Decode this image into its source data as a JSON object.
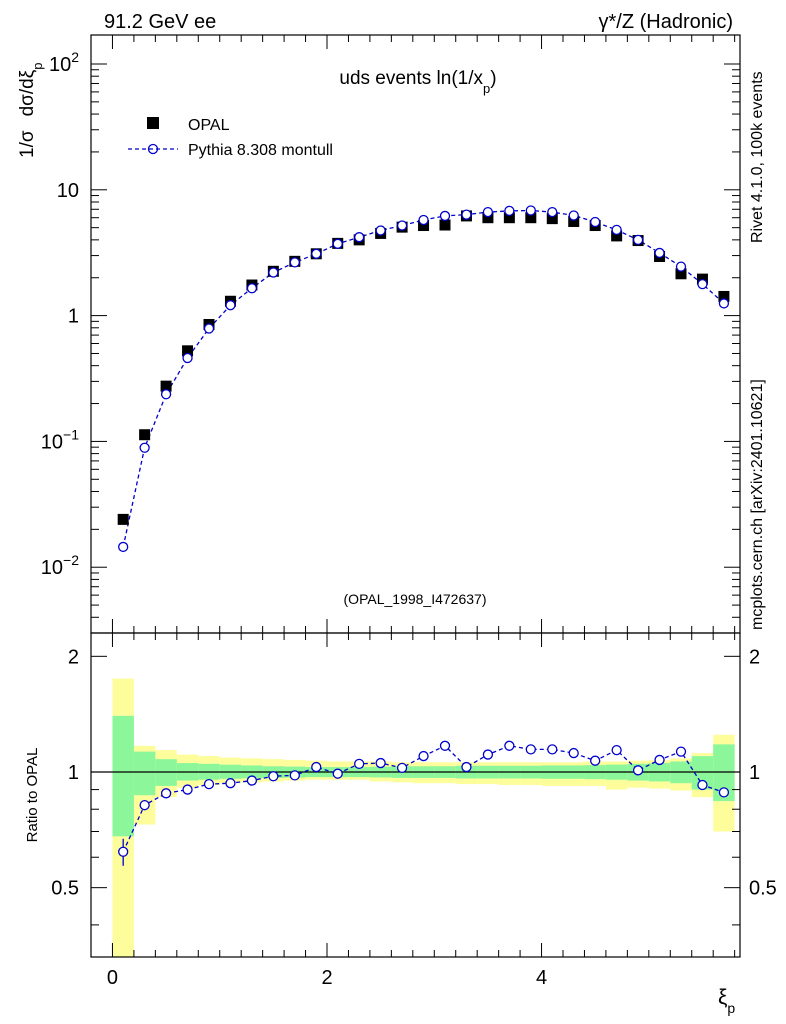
{
  "header": {
    "left": "91.2 GeV ee",
    "right_base": "γ*/Z (Hadronic)"
  },
  "main": {
    "title_base": "uds events ln(1/x",
    "title_sub": "p",
    "title_close": ")",
    "ylabel_part1": "1/σ",
    "ylabel_part2": "dσ/dξ",
    "ylabel_sub": "p",
    "tag": "(OPAL_1998_I472637)",
    "yticks_major": [
      {
        "value": 0.01,
        "base": "10",
        "exp": "−2"
      },
      {
        "value": 0.1,
        "base": "10",
        "exp": "−1"
      },
      {
        "value": 1,
        "base": "1",
        "exp": ""
      },
      {
        "value": 10,
        "base": "10",
        "exp": ""
      },
      {
        "value": 100,
        "base": "10",
        "exp": "2"
      }
    ]
  },
  "ratio": {
    "ylabel": "Ratio to OPAL",
    "ytick_labels": [
      "0.5",
      "1",
      "2"
    ]
  },
  "xaxis": {
    "label_base": "ξ",
    "label_sub": "p",
    "tick_labels": [
      "0",
      "2",
      "4"
    ]
  },
  "legend": [
    {
      "name": "OPAL",
      "marker": "filled-square",
      "color": "#000000"
    },
    {
      "name": "Pythia 8.308 montull",
      "marker": "open-circle-dashed",
      "color": "#0000cc"
    }
  ],
  "side_text": {
    "rivet": "Rivet 4.1.0,  100k events",
    "mcplots": "mcplots.cern.ch [arXiv:2401.10621]"
  },
  "colors": {
    "data": "#000000",
    "mc": "#0000cc",
    "band_inner": "#8cf79a",
    "band_outer": "#fdfd9c",
    "side_text": "#888888"
  },
  "chart_data": {
    "type": "line",
    "title": "uds events ln(1/x_p)",
    "xlabel": "ξ_p",
    "ylabel": "1/σ dσ/dξ_p",
    "xlim": [
      -0.2,
      5.85
    ],
    "ylim_main": [
      0.003,
      170
    ],
    "ylim_ratio": [
      0.33,
      2.3
    ],
    "yscale_main": "log",
    "yscale_ratio": "log",
    "bin_width": 0.2,
    "x": [
      0.1,
      0.3,
      0.5,
      0.7,
      0.9,
      1.1,
      1.3,
      1.5,
      1.7,
      1.9,
      2.1,
      2.3,
      2.5,
      2.7,
      2.9,
      3.1,
      3.3,
      3.5,
      3.7,
      3.9,
      4.1,
      4.3,
      4.5,
      4.7,
      4.9,
      5.1,
      5.3,
      5.5,
      5.7
    ],
    "series": [
      {
        "name": "OPAL",
        "values": [
          0.024,
          0.113,
          0.275,
          0.525,
          0.85,
          1.3,
          1.75,
          2.25,
          2.7,
          3.1,
          3.75,
          4.0,
          4.5,
          5.05,
          5.2,
          5.25,
          6.2,
          6.0,
          6.0,
          6.0,
          5.9,
          5.6,
          5.2,
          4.3,
          3.95,
          2.95,
          2.15,
          1.95,
          1.42
        ]
      },
      {
        "name": "Pythia 8.308 montull",
        "values": [
          0.0145,
          0.089,
          0.237,
          0.46,
          0.79,
          1.21,
          1.65,
          2.2,
          2.65,
          3.1,
          3.72,
          4.2,
          4.75,
          5.2,
          5.75,
          6.2,
          6.35,
          6.65,
          6.8,
          6.85,
          6.65,
          6.25,
          5.55,
          4.8,
          4.0,
          3.15,
          2.45,
          1.78,
          1.25
        ]
      }
    ],
    "ratio": {
      "reference": "OPAL",
      "values": [
        0.62,
        0.82,
        0.88,
        0.9,
        0.93,
        0.935,
        0.95,
        0.975,
        0.98,
        1.03,
        0.99,
        1.05,
        1.055,
        1.025,
        1.1,
        1.17,
        1.03,
        1.11,
        1.17,
        1.145,
        1.145,
        1.12,
        1.07,
        1.14,
        1.01,
        1.075,
        1.13,
        0.925,
        0.885
      ],
      "mc_error": [
        0.05,
        0.025,
        0.015,
        0.01,
        0.008,
        0.007,
        0.006,
        0.005,
        0.005,
        0.005,
        0.005,
        0.005,
        0.005,
        0.005,
        0.005,
        0.005,
        0.005,
        0.005,
        0.005,
        0.005,
        0.005,
        0.006,
        0.006,
        0.008,
        0.01,
        0.01,
        0.012,
        0.015,
        0.02
      ],
      "band_inner": [
        [
          0.68,
          1.4
        ],
        [
          0.87,
          1.13
        ],
        [
          0.92,
          1.08
        ],
        [
          0.95,
          1.055
        ],
        [
          0.955,
          1.05
        ],
        [
          0.96,
          1.045
        ],
        [
          0.963,
          1.04
        ],
        [
          0.965,
          1.035
        ],
        [
          0.967,
          1.033
        ],
        [
          0.97,
          1.03
        ],
        [
          0.97,
          1.03
        ],
        [
          0.97,
          1.03
        ],
        [
          0.968,
          1.032
        ],
        [
          0.965,
          1.035
        ],
        [
          0.965,
          1.035
        ],
        [
          0.965,
          1.035
        ],
        [
          0.962,
          1.038
        ],
        [
          0.962,
          1.038
        ],
        [
          0.962,
          1.038
        ],
        [
          0.962,
          1.038
        ],
        [
          0.96,
          1.04
        ],
        [
          0.96,
          1.04
        ],
        [
          0.958,
          1.042
        ],
        [
          0.955,
          1.045
        ],
        [
          0.95,
          1.05
        ],
        [
          0.945,
          1.055
        ],
        [
          0.935,
          1.065
        ],
        [
          0.9,
          1.1
        ],
        [
          0.84,
          1.18
        ]
      ],
      "band_outer": [
        [
          0.3,
          1.75
        ],
        [
          0.73,
          1.17
        ],
        [
          0.86,
          1.14
        ],
        [
          0.91,
          1.11
        ],
        [
          0.925,
          1.1
        ],
        [
          0.935,
          1.09
        ],
        [
          0.94,
          1.085
        ],
        [
          0.945,
          1.08
        ],
        [
          0.95,
          1.075
        ],
        [
          0.955,
          1.07
        ],
        [
          0.955,
          1.065
        ],
        [
          0.955,
          1.065
        ],
        [
          0.945,
          1.065
        ],
        [
          0.94,
          1.06
        ],
        [
          0.935,
          1.06
        ],
        [
          0.935,
          1.06
        ],
        [
          0.93,
          1.06
        ],
        [
          0.93,
          1.06
        ],
        [
          0.925,
          1.06
        ],
        [
          0.925,
          1.06
        ],
        [
          0.92,
          1.06
        ],
        [
          0.92,
          1.06
        ],
        [
          0.92,
          1.065
        ],
        [
          0.9,
          1.065
        ],
        [
          0.91,
          1.07
        ],
        [
          0.905,
          1.075
        ],
        [
          0.895,
          1.085
        ],
        [
          0.86,
          1.12
        ],
        [
          0.7,
          1.25
        ]
      ]
    }
  }
}
